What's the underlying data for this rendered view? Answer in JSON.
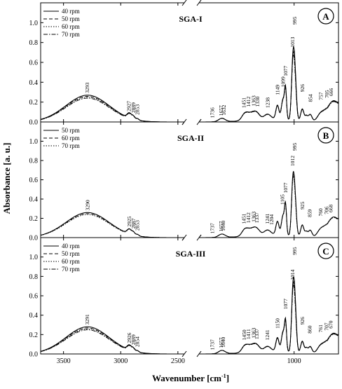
{
  "figure": {
    "ylabel": "Absorbance [a. u.]",
    "xlabel_main": "Wavenumber [cm",
    "xlabel_sup": "-1",
    "xlabel_end": "]",
    "axis_break": "//"
  },
  "chart_data": [
    {
      "type": "line",
      "letter": "A",
      "title": "SGA-I",
      "xlabel": "Wavenumber [cm-1]",
      "ylabel": "Absorbance [a. u.]",
      "xlim": [
        3700,
        600
      ],
      "x_break": [
        2450,
        1850
      ],
      "ylim": [
        0,
        1.2
      ],
      "xticks": [
        3500,
        3000,
        2500,
        1000
      ],
      "yticks": [
        0.0,
        0.2,
        0.4,
        0.6,
        0.8,
        1.0
      ],
      "legend": "top-left",
      "series": [
        {
          "name": "40 rpm",
          "style": "solid"
        },
        {
          "name": "50 rpm",
          "style": "dashed"
        },
        {
          "name": "60 rpm",
          "style": "dotted"
        },
        {
          "name": "70 rpm",
          "style": "dashdot"
        }
      ],
      "peaks": [
        {
          "label": "3293",
          "x": 3293,
          "y": 0.27
        },
        {
          "label": "2927",
          "x": 2927,
          "y": 0.085
        },
        {
          "label": "2889",
          "x": 2889,
          "y": 0.07
        },
        {
          "label": "2853",
          "x": 2853,
          "y": 0.05
        },
        {
          "label": "1736",
          "x": 1736,
          "y": 0.02
        },
        {
          "label": "1657",
          "x": 1657,
          "y": 0.04
        },
        {
          "label": "1632",
          "x": 1632,
          "y": 0.045
        },
        {
          "label": "1451",
          "x": 1451,
          "y": 0.12
        },
        {
          "label": "1412",
          "x": 1412,
          "y": 0.13
        },
        {
          "label": "1363",
          "x": 1363,
          "y": 0.14
        },
        {
          "label": "1330",
          "x": 1330,
          "y": 0.13
        },
        {
          "label": "1238",
          "x": 1238,
          "y": 0.12
        },
        {
          "label": "1149",
          "x": 1149,
          "y": 0.25
        },
        {
          "label": "1099",
          "x": 1099,
          "y": 0.33
        },
        {
          "label": "1077",
          "x": 1077,
          "y": 0.44
        },
        {
          "label": "1013",
          "x": 1013,
          "y": 0.73
        },
        {
          "label": "995",
          "x": 995,
          "y": 0.96
        },
        {
          "label": "926",
          "x": 926,
          "y": 0.28
        },
        {
          "label": "854",
          "x": 854,
          "y": 0.18
        },
        {
          "label": "757",
          "x": 757,
          "y": 0.2
        },
        {
          "label": "705",
          "x": 705,
          "y": 0.22
        },
        {
          "label": "666",
          "x": 666,
          "y": 0.24
        }
      ]
    },
    {
      "type": "line",
      "letter": "B",
      "title": "SGA-II",
      "xlabel": "Wavenumber [cm-1]",
      "ylabel": "Absorbance [a. u.]",
      "xlim": [
        3700,
        600
      ],
      "x_break": [
        2450,
        1850
      ],
      "ylim": [
        0,
        1.2
      ],
      "xticks": [
        3500,
        3000,
        2500,
        1000
      ],
      "yticks": [
        0.0,
        0.2,
        0.4,
        0.6,
        0.8,
        1.0
      ],
      "legend": "top-left",
      "series": [
        {
          "name": "50 rpm",
          "style": "solid"
        },
        {
          "name": "60 rpm",
          "style": "dashed"
        },
        {
          "name": "70 rpm",
          "style": "dotted"
        }
      ],
      "peaks": [
        {
          "label": "3290",
          "x": 3290,
          "y": 0.26
        },
        {
          "label": "2925",
          "x": 2925,
          "y": 0.09
        },
        {
          "label": "2887",
          "x": 2887,
          "y": 0.07
        },
        {
          "label": "2853",
          "x": 2853,
          "y": 0.05
        },
        {
          "label": "1737",
          "x": 1737,
          "y": 0.02
        },
        {
          "label": "1657",
          "x": 1657,
          "y": 0.04
        },
        {
          "label": "1640",
          "x": 1640,
          "y": 0.045
        },
        {
          "label": "1451",
          "x": 1451,
          "y": 0.12
        },
        {
          "label": "1412",
          "x": 1412,
          "y": 0.13
        },
        {
          "label": "1363",
          "x": 1363,
          "y": 0.14
        },
        {
          "label": "1337",
          "x": 1337,
          "y": 0.13
        },
        {
          "label": "1241",
          "x": 1241,
          "y": 0.12
        },
        {
          "label": "1204",
          "x": 1204,
          "y": 0.11
        },
        {
          "label": "1105",
          "x": 1105,
          "y": 0.32
        },
        {
          "label": "1077",
          "x": 1077,
          "y": 0.44
        },
        {
          "label": "1012",
          "x": 1012,
          "y": 0.72
        },
        {
          "label": "995",
          "x": 995,
          "y": 0.88
        },
        {
          "label": "925",
          "x": 925,
          "y": 0.27
        },
        {
          "label": "859",
          "x": 859,
          "y": 0.19
        },
        {
          "label": "760",
          "x": 760,
          "y": 0.2
        },
        {
          "label": "706",
          "x": 706,
          "y": 0.22
        },
        {
          "label": "668",
          "x": 668,
          "y": 0.24
        }
      ]
    },
    {
      "type": "line",
      "letter": "C",
      "title": "SGA-III",
      "xlabel": "Wavenumber [cm-1]",
      "ylabel": "Absorbance [a. u.]",
      "xlim": [
        3700,
        600
      ],
      "x_break": [
        2450,
        1850
      ],
      "ylim": [
        0,
        1.2
      ],
      "xticks": [
        3500,
        3000,
        2500,
        1000
      ],
      "yticks": [
        0.0,
        0.2,
        0.4,
        0.6,
        0.8,
        1.0
      ],
      "legend": "top-left",
      "series": [
        {
          "name": "40 rpm",
          "style": "solid"
        },
        {
          "name": "50 rpm",
          "style": "dashed"
        },
        {
          "name": "60 rpm",
          "style": "dotted"
        },
        {
          "name": "70 rpm",
          "style": "dashdot"
        }
      ],
      "peaks": [
        {
          "label": "3291",
          "x": 3291,
          "y": 0.28
        },
        {
          "label": "2926",
          "x": 2926,
          "y": 0.09
        },
        {
          "label": "2889",
          "x": 2889,
          "y": 0.07
        },
        {
          "label": "2854",
          "x": 2854,
          "y": 0.05
        },
        {
          "label": "1737",
          "x": 1737,
          "y": 0.02
        },
        {
          "label": "1657",
          "x": 1657,
          "y": 0.04
        },
        {
          "label": "1640",
          "x": 1640,
          "y": 0.045
        },
        {
          "label": "1450",
          "x": 1450,
          "y": 0.12
        },
        {
          "label": "1411",
          "x": 1411,
          "y": 0.13
        },
        {
          "label": "1363",
          "x": 1363,
          "y": 0.14
        },
        {
          "label": "1337",
          "x": 1337,
          "y": 0.13
        },
        {
          "label": "1241",
          "x": 1241,
          "y": 0.12
        },
        {
          "label": "1150",
          "x": 1150,
          "y": 0.24
        },
        {
          "label": "1077",
          "x": 1077,
          "y": 0.44
        },
        {
          "label": "1014",
          "x": 1014,
          "y": 0.74
        },
        {
          "label": "995",
          "x": 995,
          "y": 1.0
        },
        {
          "label": "926",
          "x": 926,
          "y": 0.28
        },
        {
          "label": "860",
          "x": 860,
          "y": 0.19
        },
        {
          "label": "761",
          "x": 761,
          "y": 0.2
        },
        {
          "label": "707",
          "x": 707,
          "y": 0.22
        },
        {
          "label": "670",
          "x": 670,
          "y": 0.24
        }
      ]
    }
  ]
}
